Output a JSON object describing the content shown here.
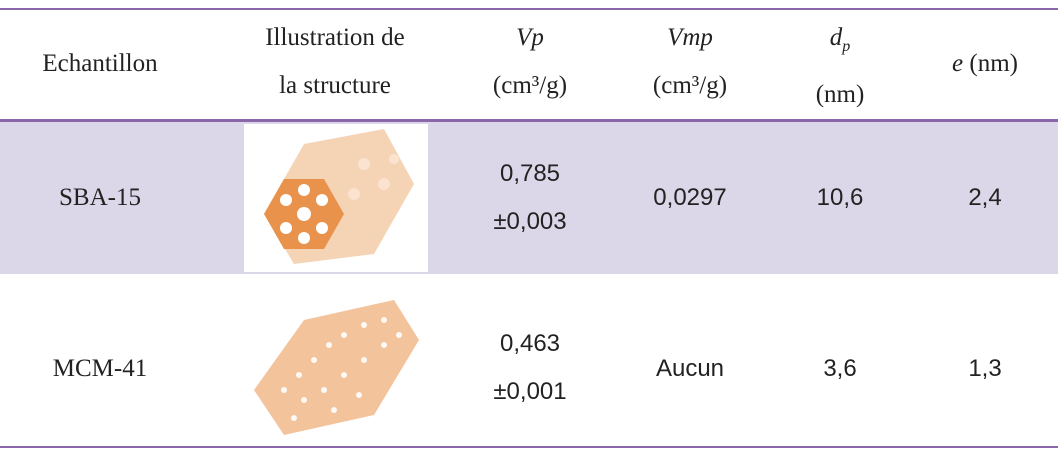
{
  "table": {
    "header": [
      {
        "line1": "Echantillon"
      },
      {
        "line1": "Illustration de",
        "line2": "la structure"
      },
      {
        "line1": "Vp",
        "line2": "(cm³/g)"
      },
      {
        "line1": "Vmp",
        "line2": "(cm³/g)"
      },
      {
        "symbol": "d",
        "subscript": "p",
        "line2": "(nm)"
      },
      {
        "symbol": "e",
        "unit": "(nm)"
      }
    ],
    "rows": [
      {
        "name": "SBA-15",
        "vp": "0,785",
        "vp_err": "±0,003",
        "vmp": "0,0297",
        "dp": "10,6",
        "e": "2,4"
      },
      {
        "name": "MCM-41",
        "vp": "0,463",
        "vp_err": "±0,001",
        "vmp": "Aucun",
        "dp": "3,6",
        "e": "1,3"
      }
    ]
  }
}
